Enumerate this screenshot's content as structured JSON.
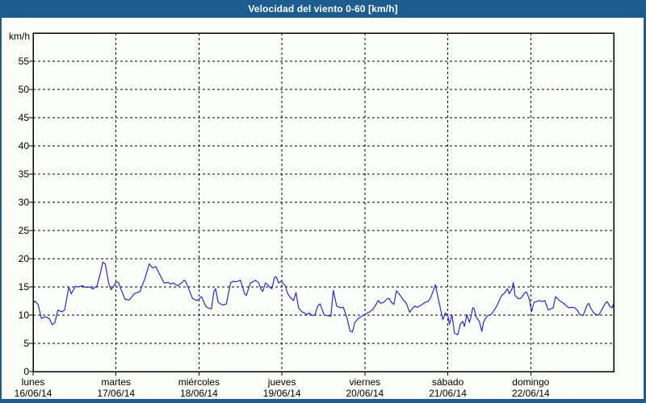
{
  "window": {
    "title": "Velocidad del viento 0-60 [km/h]"
  },
  "colors": {
    "titlebar_bg": "#1d5c8f",
    "frame_border": "#1d5c8f",
    "content_bg": "#fcfef8",
    "plot_bg": "#fdfffb",
    "grid": "#000000",
    "line": "#2b2bc8",
    "title_text": "#ffffff",
    "label_text": "#000000"
  },
  "chart_data": {
    "type": "line",
    "title": "Velocidad del viento 0-60 [km/h]",
    "ylabel_unit": "km/h",
    "ylim": [
      0,
      60
    ],
    "yticks": [
      0,
      5,
      10,
      15,
      20,
      25,
      30,
      35,
      40,
      45,
      50,
      55
    ],
    "grid": "dashed",
    "legend": "none",
    "days": [
      {
        "name": "lunes",
        "date": "16/06/14"
      },
      {
        "name": "martes",
        "date": "17/06/14"
      },
      {
        "name": "miércoles",
        "date": "18/06/14"
      },
      {
        "name": "jueves",
        "date": "19/06/14"
      },
      {
        "name": "viernes",
        "date": "20/06/14"
      },
      {
        "name": "sábado",
        "date": "21/06/14"
      },
      {
        "name": "domingo",
        "date": "22/06/14"
      }
    ],
    "series": [
      {
        "name": "Velocidad del viento",
        "color": "#2b2bc8",
        "x_unit": "days_from_start",
        "points": [
          [
            0.0,
            12.0
          ],
          [
            0.02,
            12.5
          ],
          [
            0.06,
            11.9
          ],
          [
            0.1,
            9.4
          ],
          [
            0.14,
            9.7
          ],
          [
            0.17,
            9.6
          ],
          [
            0.2,
            9.3
          ],
          [
            0.23,
            8.3
          ],
          [
            0.26,
            8.6
          ],
          [
            0.3,
            10.9
          ],
          [
            0.33,
            10.7
          ],
          [
            0.35,
            10.6
          ],
          [
            0.38,
            10.9
          ],
          [
            0.43,
            15.0
          ],
          [
            0.46,
            13.8
          ],
          [
            0.51,
            15.1
          ],
          [
            0.55,
            15.0
          ],
          [
            0.59,
            15.2
          ],
          [
            0.64,
            14.9
          ],
          [
            0.69,
            15.0
          ],
          [
            0.72,
            14.6
          ],
          [
            0.77,
            15.2
          ],
          [
            0.81,
            17.4
          ],
          [
            0.84,
            19.4
          ],
          [
            0.87,
            19.1
          ],
          [
            0.91,
            15.7
          ],
          [
            0.94,
            14.5
          ],
          [
            0.96,
            14.9
          ],
          [
            1.0,
            15.9
          ],
          [
            1.03,
            15.8
          ],
          [
            1.07,
            14.2
          ],
          [
            1.11,
            12.8
          ],
          [
            1.16,
            12.7
          ],
          [
            1.22,
            13.8
          ],
          [
            1.29,
            14.2
          ],
          [
            1.35,
            16.6
          ],
          [
            1.4,
            19.1
          ],
          [
            1.44,
            18.4
          ],
          [
            1.48,
            18.6
          ],
          [
            1.52,
            17.4
          ],
          [
            1.58,
            15.7
          ],
          [
            1.63,
            15.8
          ],
          [
            1.66,
            15.5
          ],
          [
            1.69,
            15.7
          ],
          [
            1.74,
            15.2
          ],
          [
            1.79,
            15.7
          ],
          [
            1.82,
            16.2
          ],
          [
            1.84,
            16.0
          ],
          [
            1.92,
            13.0
          ],
          [
            1.97,
            12.6
          ],
          [
            2.0,
            12.8
          ],
          [
            2.03,
            13.3
          ],
          [
            2.08,
            11.6
          ],
          [
            2.11,
            11.3
          ],
          [
            2.15,
            11.1
          ],
          [
            2.18,
            14.2
          ],
          [
            2.2,
            14.7
          ],
          [
            2.23,
            12.3
          ],
          [
            2.26,
            12.0
          ],
          [
            2.29,
            11.8
          ],
          [
            2.33,
            12.0
          ],
          [
            2.38,
            15.7
          ],
          [
            2.41,
            16.0
          ],
          [
            2.44,
            15.9
          ],
          [
            2.47,
            16.0
          ],
          [
            2.5,
            16.2
          ],
          [
            2.55,
            13.8
          ],
          [
            2.57,
            13.5
          ],
          [
            2.62,
            15.7
          ],
          [
            2.65,
            15.9
          ],
          [
            2.68,
            16.2
          ],
          [
            2.72,
            15.7
          ],
          [
            2.75,
            14.5
          ],
          [
            2.77,
            14.2
          ],
          [
            2.8,
            15.7
          ],
          [
            2.82,
            15.5
          ],
          [
            2.85,
            15.0
          ],
          [
            2.88,
            14.7
          ],
          [
            2.91,
            16.7
          ],
          [
            2.93,
            16.8
          ],
          [
            2.96,
            15.7
          ],
          [
            2.99,
            16.0
          ],
          [
            3.04,
            15.2
          ],
          [
            3.07,
            13.8
          ],
          [
            3.11,
            13.0
          ],
          [
            3.14,
            12.6
          ],
          [
            3.17,
            14.0
          ],
          [
            3.2,
            11.3
          ],
          [
            3.24,
            10.6
          ],
          [
            3.27,
            10.4
          ],
          [
            3.3,
            10.1
          ],
          [
            3.33,
            10.4
          ],
          [
            3.37,
            9.9
          ],
          [
            3.4,
            10.1
          ],
          [
            3.43,
            11.6
          ],
          [
            3.46,
            12.0
          ],
          [
            3.51,
            10.0
          ],
          [
            3.56,
            9.9
          ],
          [
            3.59,
            9.8
          ],
          [
            3.62,
            14.4
          ],
          [
            3.66,
            11.6
          ],
          [
            3.71,
            11.3
          ],
          [
            3.74,
            11.4
          ],
          [
            3.79,
            9.2
          ],
          [
            3.82,
            7.2
          ],
          [
            3.85,
            7.0
          ],
          [
            3.88,
            8.7
          ],
          [
            3.92,
            9.4
          ],
          [
            3.97,
            9.9
          ],
          [
            4.0,
            10.1
          ],
          [
            4.03,
            10.4
          ],
          [
            4.06,
            10.6
          ],
          [
            4.1,
            11.1
          ],
          [
            4.13,
            11.8
          ],
          [
            4.16,
            12.6
          ],
          [
            4.19,
            12.1
          ],
          [
            4.23,
            12.3
          ],
          [
            4.26,
            12.8
          ],
          [
            4.29,
            13.0
          ],
          [
            4.32,
            12.3
          ],
          [
            4.35,
            11.9
          ],
          [
            4.38,
            14.3
          ],
          [
            4.41,
            13.8
          ],
          [
            4.44,
            13.2
          ],
          [
            4.47,
            12.6
          ],
          [
            4.5,
            12.1
          ],
          [
            4.54,
            10.5
          ],
          [
            4.57,
            11.1
          ],
          [
            4.6,
            11.6
          ],
          [
            4.63,
            11.4
          ],
          [
            4.66,
            11.6
          ],
          [
            4.7,
            12.0
          ],
          [
            4.73,
            12.3
          ],
          [
            4.76,
            12.4
          ],
          [
            4.79,
            13.0
          ],
          [
            4.83,
            14.5
          ],
          [
            4.85,
            15.4
          ],
          [
            4.87,
            14.0
          ],
          [
            4.89,
            12.6
          ],
          [
            4.94,
            9.2
          ],
          [
            4.97,
            10.4
          ],
          [
            5.0,
            9.9
          ],
          [
            5.02,
            8.4
          ],
          [
            5.05,
            10.1
          ],
          [
            5.08,
            6.8
          ],
          [
            5.12,
            6.5
          ],
          [
            5.15,
            8.4
          ],
          [
            5.18,
            8.9
          ],
          [
            5.2,
            8.0
          ],
          [
            5.23,
            10.1
          ],
          [
            5.26,
            8.7
          ],
          [
            5.28,
            9.7
          ],
          [
            5.3,
            11.3
          ],
          [
            5.32,
            11.1
          ],
          [
            5.34,
            9.7
          ],
          [
            5.38,
            8.9
          ],
          [
            5.41,
            7.1
          ],
          [
            5.43,
            8.7
          ],
          [
            5.46,
            9.6
          ],
          [
            5.49,
            10.0
          ],
          [
            5.52,
            10.1
          ],
          [
            5.56,
            10.9
          ],
          [
            5.59,
            11.6
          ],
          [
            5.62,
            12.6
          ],
          [
            5.65,
            13.5
          ],
          [
            5.69,
            14.0
          ],
          [
            5.72,
            14.7
          ],
          [
            5.74,
            13.8
          ],
          [
            5.77,
            14.5
          ],
          [
            5.79,
            15.8
          ],
          [
            5.81,
            13.5
          ],
          [
            5.85,
            12.9
          ],
          [
            5.88,
            13.0
          ],
          [
            5.93,
            14.0
          ],
          [
            5.95,
            14.1
          ],
          [
            5.98,
            13.0
          ],
          [
            6.01,
            10.6
          ],
          [
            6.04,
            12.3
          ],
          [
            6.07,
            12.4
          ],
          [
            6.11,
            12.6
          ],
          [
            6.14,
            12.4
          ],
          [
            6.17,
            12.6
          ],
          [
            6.21,
            10.9
          ],
          [
            6.24,
            11.1
          ],
          [
            6.27,
            11.3
          ],
          [
            6.3,
            13.3
          ],
          [
            6.33,
            12.8
          ],
          [
            6.37,
            12.3
          ],
          [
            6.4,
            12.1
          ],
          [
            6.43,
            11.6
          ],
          [
            6.46,
            11.3
          ],
          [
            6.5,
            11.4
          ],
          [
            6.53,
            11.3
          ],
          [
            6.56,
            10.9
          ],
          [
            6.59,
            10.1
          ],
          [
            6.63,
            9.9
          ],
          [
            6.68,
            11.8
          ],
          [
            6.7,
            12.1
          ],
          [
            6.72,
            11.3
          ],
          [
            6.76,
            10.4
          ],
          [
            6.79,
            10.1
          ],
          [
            6.82,
            10.0
          ],
          [
            6.87,
            11.3
          ],
          [
            6.9,
            12.1
          ],
          [
            6.92,
            12.4
          ],
          [
            6.95,
            11.6
          ],
          [
            6.98,
            11.3
          ],
          [
            7.0,
            12.0
          ]
        ]
      }
    ]
  }
}
